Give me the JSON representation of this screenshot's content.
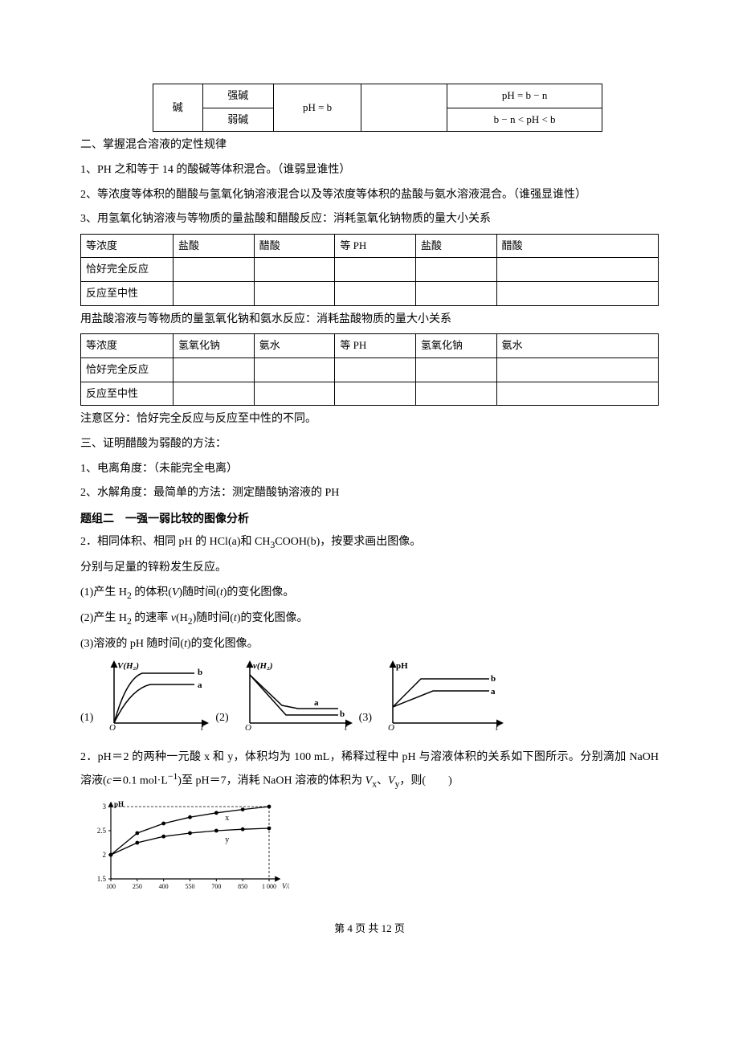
{
  "topTable": {
    "col1": "碱",
    "row1": {
      "c1": "强碱",
      "c2": "pH = b",
      "c3": "",
      "c4": "pH = b − n"
    },
    "row2": {
      "c1": "弱碱",
      "c3": "",
      "c4": "b − n < pH < b"
    }
  },
  "section2_title": "二、掌握混合溶液的定性规律",
  "s2_p1": "1、PH 之和等于 14 的酸碱等体积混合。（谁弱显谁性）",
  "s2_p2": "2、等浓度等体积的醋酸与氢氧化钠溶液混合以及等浓度等体积的盐酸与氨水溶液混合。（谁强显谁性）",
  "s2_p3": "3、用氢氧化钠溶液与等物质的量盐酸和醋酸反应：消耗氢氧化钠物质的量大小关系",
  "table1": {
    "h1": "等浓度",
    "h2": "盐酸",
    "h3": "醋酸",
    "h4": "等 PH",
    "h5": "盐酸",
    "h6": "醋酸",
    "r2c1": "恰好完全反应",
    "r3c1": "反应至中性"
  },
  "s2_p4": "用盐酸溶液与等物质的量氢氧化钠和氨水反应：消耗盐酸物质的量大小关系",
  "table2": {
    "h1": "等浓度",
    "h2": "氢氧化钠",
    "h3": "氨水",
    "h4": "等 PH",
    "h5": "氢氧化钠",
    "h6": "氨水",
    "r2c1": "恰好完全反应",
    "r3c1": "反应至中性"
  },
  "s2_note": "注意区分：恰好完全反应与反应至中性的不同。",
  "s3_title": "三、证明醋酸为弱酸的方法：",
  "s3_p1": "1、电离角度：（未能完全电离）",
  "s3_p2": "2、水解角度：最简单的方法：测定醋酸钠溶液的 PH",
  "tizu_title": "题组二　一强一弱比较的图像分析",
  "q2_p1_a": "2．相同体积、相同 pH 的 HCl(a)和 CH",
  "q2_p1_b": "COOH(b)，按要求画出图像。",
  "q2_p2": "分别与足量的锌粉发生反应。",
  "q2_l1a": "(1)产生 H",
  "q2_l1b": " 的体积(",
  "q2_l1c": ")随时间(",
  "q2_l1d": ")的变化图像。",
  "q2_l2a": "(2)产生 H",
  "q2_l2b": " 的速率 ",
  "q2_l2c": "(H",
  "q2_l2d": ")随时间(",
  "q2_l2e": ")的变化图像。",
  "q2_l3a": "(3)溶液的 pH 随时间(",
  "q2_l3b": ")的变化图像。",
  "graph_labels": {
    "g1": "(1)",
    "g2": "(2)",
    "g3": "(3)"
  },
  "g1": {
    "ylabel": "V(H₂)",
    "xlabel": "t",
    "a": "a",
    "b": "b"
  },
  "g2": {
    "ylabel": "v(H₂)",
    "xlabel": "t",
    "a": "a",
    "b": "b"
  },
  "g3": {
    "ylabel": "pH",
    "xlabel": "t",
    "a": "a",
    "b": "b"
  },
  "q2b_a": "2．pH＝2 的两种一元酸 x 和 y，体积均为 100 mL，稀释过程中 pH 与溶液体积的关系如下图所示。分别滴加 NaOH 溶液(",
  "q2b_b": "＝0.1 mol·L",
  "q2b_c": ")至 pH＝7，消耗 NaOH 溶液的体积为 ",
  "q2b_d": "、",
  "q2b_e": "，则(　　)",
  "chart": {
    "ylabel": "pH",
    "yticks": [
      "1.5",
      "2",
      "2.5",
      "3"
    ],
    "xticks": [
      "100",
      "250",
      "400",
      "550",
      "700",
      "850",
      "1 000"
    ],
    "xlabel": "V/mL",
    "series_x": "x",
    "series_y": "y",
    "colors": {
      "axis": "#000",
      "line": "#000",
      "dot": "#000",
      "dash": "#000"
    },
    "data_x": [
      {
        "x": 100,
        "y": 2.0
      },
      {
        "x": 250,
        "y": 2.45
      },
      {
        "x": 400,
        "y": 2.65
      },
      {
        "x": 550,
        "y": 2.78
      },
      {
        "x": 700,
        "y": 2.87
      },
      {
        "x": 850,
        "y": 2.94
      },
      {
        "x": 1000,
        "y": 3.0
      }
    ],
    "data_y": [
      {
        "x": 100,
        "y": 2.0
      },
      {
        "x": 250,
        "y": 2.25
      },
      {
        "x": 400,
        "y": 2.38
      },
      {
        "x": 550,
        "y": 2.45
      },
      {
        "x": 700,
        "y": 2.5
      },
      {
        "x": 850,
        "y": 2.53
      },
      {
        "x": 1000,
        "y": 2.55
      }
    ]
  },
  "footer": "第 4 页 共 12 页"
}
